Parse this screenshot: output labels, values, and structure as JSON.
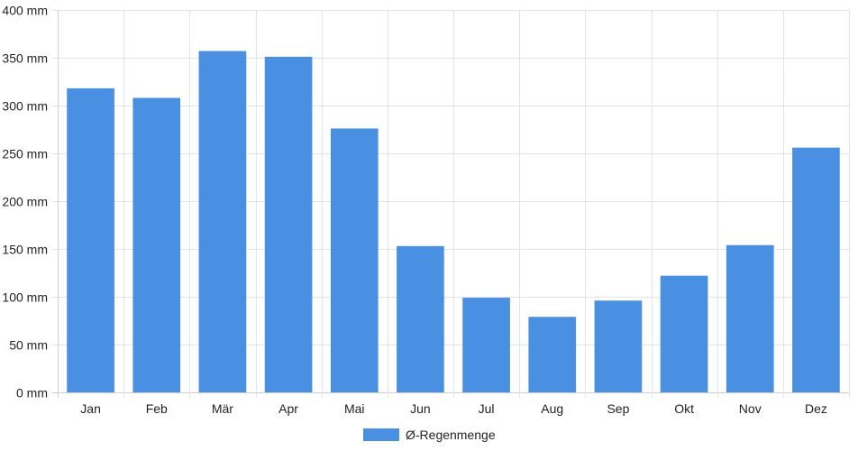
{
  "chart_data": {
    "type": "bar",
    "categories": [
      "Jan",
      "Feb",
      "Mär",
      "Apr",
      "Mai",
      "Jun",
      "Jul",
      "Aug",
      "Sep",
      "Okt",
      "Nov",
      "Dez"
    ],
    "series": [
      {
        "name": "Ø-Regenmenge",
        "values": [
          318,
          308,
          357,
          351,
          276,
          153,
          99,
          79,
          96,
          122,
          154,
          256
        ],
        "color": "#4a90e2"
      }
    ],
    "ylim": [
      0,
      400
    ],
    "yticks": [
      0,
      50,
      100,
      150,
      200,
      250,
      300,
      350,
      400
    ],
    "yunit": "mm",
    "grid": true,
    "legend_position": "bottom-center"
  }
}
